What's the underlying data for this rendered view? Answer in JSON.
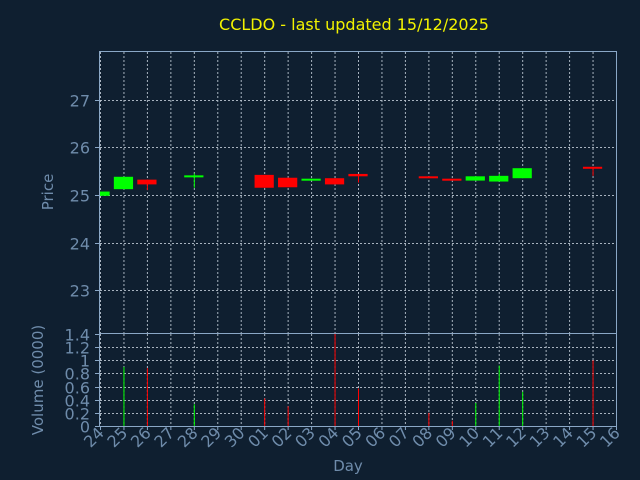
{
  "chart": {
    "title": "CCLDO - last updated 15/12/2025"
  },
  "colors": {
    "background": "#0f1f30",
    "up": "#00ff00",
    "down": "#ff0000",
    "title": "#f2f200",
    "axis_text": "#6f8cab",
    "grid": "#b9c4cf"
  },
  "chart_data": [
    {
      "type": "candlestick",
      "title": "CCLDO - last updated 15/12/2025",
      "xlabel": "",
      "ylabel": "Price",
      "x_ticks": [
        "24",
        "25",
        "26",
        "27",
        "28",
        "29",
        "30",
        "01",
        "02",
        "03",
        "04",
        "05",
        "06",
        "07",
        "08",
        "09",
        "10",
        "11",
        "12",
        "13",
        "14",
        "15",
        "16"
      ],
      "y_ticks": [
        "23",
        "24",
        "25",
        "26",
        "27"
      ],
      "ylim": [
        22.1,
        28.0
      ],
      "grid": true,
      "candles": [
        {
          "day": "24",
          "open": 24.98,
          "close": 25.07,
          "high": 25.07,
          "low": 24.98
        },
        {
          "day": "25",
          "open": 25.12,
          "close": 25.38,
          "high": 25.38,
          "low": 25.12
        },
        {
          "day": "26",
          "open": 25.32,
          "close": 25.22,
          "high": 25.32,
          "low": 25.1
        },
        {
          "day": "28",
          "open": 25.38,
          "close": 25.41,
          "high": 25.45,
          "low": 25.15
        },
        {
          "day": "01",
          "open": 25.42,
          "close": 25.15,
          "high": 25.42,
          "low": 25.15
        },
        {
          "day": "02",
          "open": 25.36,
          "close": 25.16,
          "high": 25.36,
          "low": 25.16
        },
        {
          "day": "03",
          "open": 25.32,
          "close": 25.34,
          "high": 25.34,
          "low": 25.32
        },
        {
          "day": "04",
          "open": 25.35,
          "close": 25.22,
          "high": 25.35,
          "low": 25.22
        },
        {
          "day": "05",
          "open": 25.44,
          "close": 25.39,
          "high": 25.44,
          "low": 25.26
        },
        {
          "day": "08",
          "open": 25.39,
          "close": 25.36,
          "high": 25.39,
          "low": 25.36
        },
        {
          "day": "09",
          "open": 25.34,
          "close": 25.32,
          "high": 25.34,
          "low": 25.32
        },
        {
          "day": "10",
          "open": 25.3,
          "close": 25.39,
          "high": 25.39,
          "low": 25.3
        },
        {
          "day": "11",
          "open": 25.28,
          "close": 25.4,
          "high": 25.44,
          "low": 25.28
        },
        {
          "day": "12",
          "open": 25.35,
          "close": 25.56,
          "high": 25.56,
          "low": 25.35
        },
        {
          "day": "15",
          "open": 25.59,
          "close": 25.55,
          "high": 25.59,
          "low": 25.4
        }
      ]
    },
    {
      "type": "bar",
      "title": "",
      "xlabel": "Day",
      "ylabel": "Volume (0000)",
      "x_ticks": [
        "24",
        "25",
        "26",
        "27",
        "28",
        "29",
        "30",
        "01",
        "02",
        "03",
        "04",
        "05",
        "06",
        "07",
        "08",
        "09",
        "10",
        "11",
        "12",
        "13",
        "14",
        "15",
        "16"
      ],
      "y_ticks": [
        "0",
        "0.2",
        "0.4",
        "0.6",
        "0.8",
        "1",
        "1.2",
        "1.4"
      ],
      "ylim": [
        0,
        1.4
      ],
      "grid": true,
      "bars": [
        {
          "day": "25",
          "value": 0.9,
          "direction": "up"
        },
        {
          "day": "26",
          "value": 0.88,
          "direction": "down"
        },
        {
          "day": "28",
          "value": 0.33,
          "direction": "up"
        },
        {
          "day": "01",
          "value": 0.42,
          "direction": "down"
        },
        {
          "day": "02",
          "value": 0.3,
          "direction": "down"
        },
        {
          "day": "04",
          "value": 1.4,
          "direction": "down"
        },
        {
          "day": "05",
          "value": 0.57,
          "direction": "down"
        },
        {
          "day": "08",
          "value": 0.2,
          "direction": "down"
        },
        {
          "day": "09",
          "value": 0.08,
          "direction": "down"
        },
        {
          "day": "10",
          "value": 0.35,
          "direction": "up"
        },
        {
          "day": "11",
          "value": 0.92,
          "direction": "up"
        },
        {
          "day": "12",
          "value": 0.52,
          "direction": "up"
        },
        {
          "day": "15",
          "value": 1.0,
          "direction": "down"
        }
      ]
    }
  ]
}
